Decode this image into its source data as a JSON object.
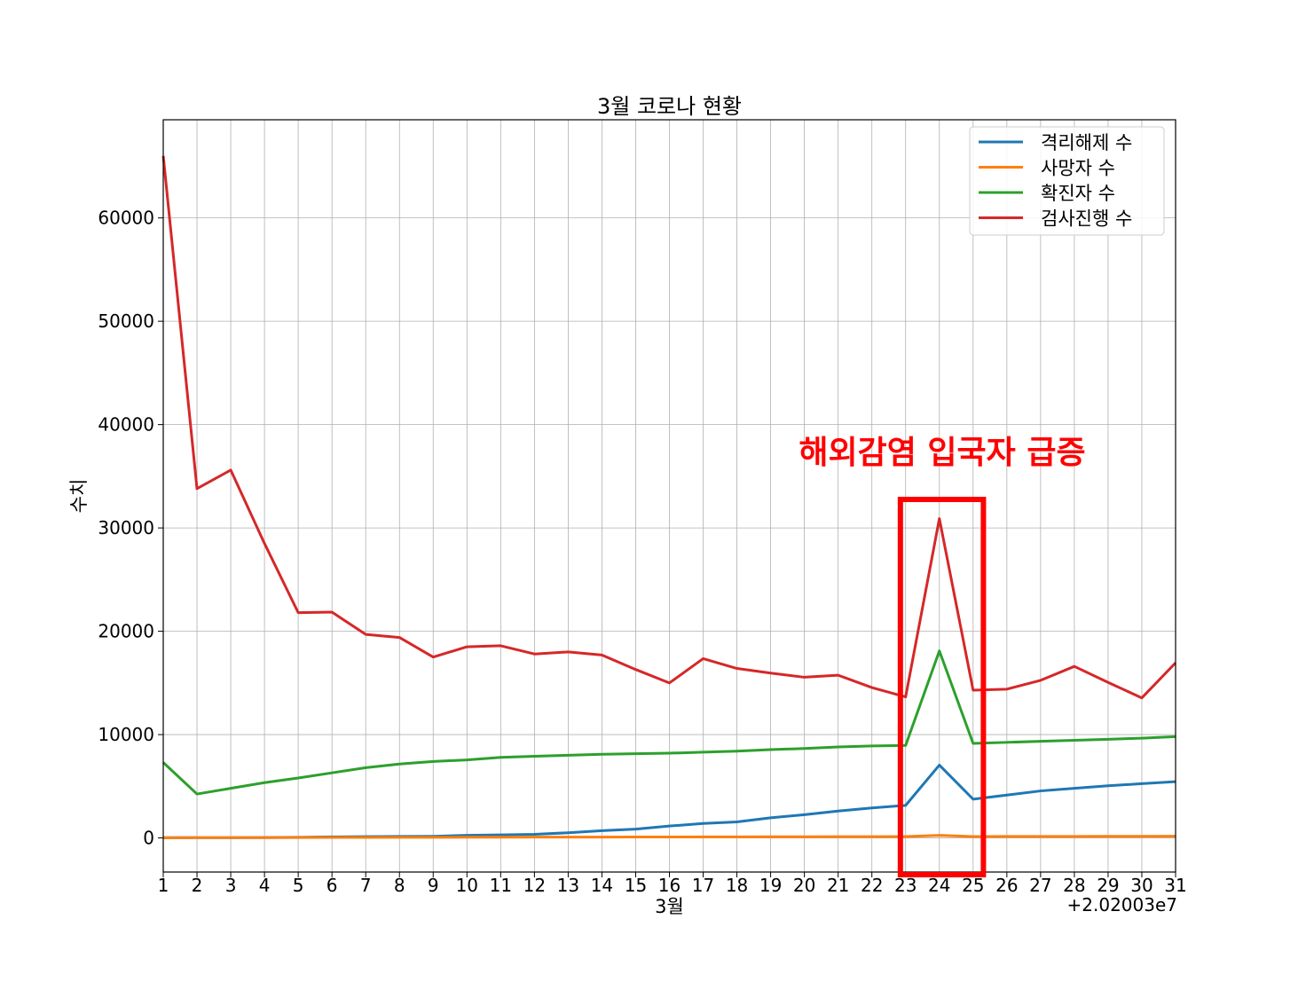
{
  "chart_data": {
    "type": "line",
    "title": "3월 코로나 현황",
    "xlabel": "3월",
    "ylabel": "수치",
    "x_offset_label": "+2.02003e7",
    "x": [
      1,
      2,
      3,
      4,
      5,
      6,
      7,
      8,
      9,
      10,
      11,
      12,
      13,
      14,
      15,
      16,
      17,
      18,
      19,
      20,
      21,
      22,
      23,
      24,
      25,
      26,
      27,
      28,
      29,
      30,
      31
    ],
    "xlim": [
      1,
      31
    ],
    "ylim": [
      -3300,
      69500
    ],
    "yticks": [
      0,
      10000,
      20000,
      30000,
      40000,
      50000,
      60000
    ],
    "grid": true,
    "legend_position": "top-right",
    "series": [
      {
        "name": "격리해제 수",
        "color": "#1f77b4",
        "values": [
          30,
          28,
          28,
          35,
          60,
          100,
          120,
          140,
          160,
          250,
          300,
          350,
          500,
          700,
          850,
          1150,
          1400,
          1550,
          1950,
          2250,
          2600,
          2900,
          3150,
          7050,
          3750,
          4150,
          4550,
          4800,
          5050,
          5250,
          5450
        ]
      },
      {
        "name": "사망자 수",
        "color": "#ff7f0e",
        "values": [
          20,
          25,
          28,
          30,
          40,
          45,
          50,
          55,
          60,
          65,
          70,
          75,
          80,
          85,
          90,
          95,
          100,
          105,
          110,
          115,
          120,
          125,
          130,
          250,
          135,
          140,
          145,
          150,
          155,
          160,
          165
        ]
      },
      {
        "name": "확진자 수",
        "color": "#2ca02c",
        "values": [
          7300,
          4250,
          4800,
          5350,
          5800,
          6300,
          6800,
          7150,
          7400,
          7550,
          7800,
          7900,
          8000,
          8100,
          8150,
          8200,
          8300,
          8400,
          8550,
          8650,
          8800,
          8900,
          8950,
          18100,
          9150,
          9250,
          9350,
          9450,
          9550,
          9650,
          9800
        ]
      },
      {
        "name": "검사진행 수",
        "color": "#d62728",
        "values": [
          66000,
          33800,
          35600,
          28500,
          21800,
          21850,
          19700,
          19400,
          17500,
          18500,
          18600,
          17800,
          18000,
          17700,
          16300,
          15000,
          17350,
          16400,
          15950,
          15550,
          15750,
          14550,
          13650,
          30900,
          14300,
          14400,
          15250,
          16600,
          15050,
          13550,
          16950
        ]
      }
    ],
    "annotation": {
      "text": "해외감염 입국자 급증",
      "color": "#ff0000",
      "highlight_x_range": [
        22.95,
        25.2
      ]
    }
  }
}
